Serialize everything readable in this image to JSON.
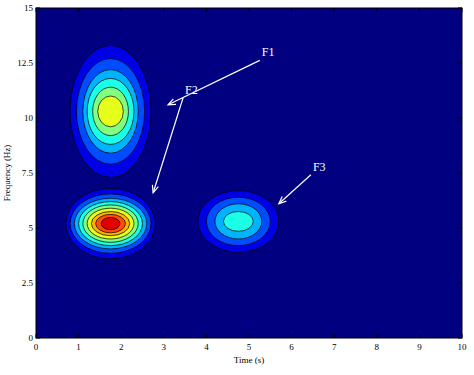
{
  "chart_data": {
    "type": "contour",
    "x_label": "Time (s)",
    "y_label": "Frequency (Hz)",
    "xlim": [
      0,
      10
    ],
    "ylim": [
      0,
      15
    ],
    "xticks": [
      0,
      1,
      2,
      3,
      4,
      5,
      6,
      7,
      8,
      9,
      10
    ],
    "yticks": [
      0,
      2.5,
      5,
      7.5,
      10,
      12.5,
      15
    ],
    "clim": [
      0,
      10
    ],
    "grid": false,
    "components": [
      {
        "name": "F1",
        "time": 1.75,
        "frequency": 10.3,
        "text_time": 5.3,
        "text_frequency": 12.8,
        "arrow_time": 3.1,
        "arrow_frequency": 10.6,
        "levels": [
          {
            "level": 1,
            "time_halfwidth": 0.95,
            "freq_halfwidth": 3.0
          },
          {
            "level": 2,
            "time_halfwidth": 0.8,
            "freq_halfwidth": 2.4
          },
          {
            "level": 3,
            "time_halfwidth": 0.65,
            "freq_halfwidth": 1.9
          },
          {
            "level": 4,
            "time_halfwidth": 0.55,
            "freq_halfwidth": 1.5
          },
          {
            "level": 5,
            "time_halfwidth": 0.42,
            "freq_halfwidth": 1.1
          },
          {
            "level": 6,
            "time_halfwidth": 0.3,
            "freq_halfwidth": 0.7
          }
        ]
      },
      {
        "name": "F2",
        "time": 1.75,
        "frequency": 5.2,
        "text_time": 3.5,
        "text_frequency": 11.1,
        "arrow_time": 2.75,
        "arrow_frequency": 6.6,
        "levels": [
          {
            "level": 1,
            "time_halfwidth": 1.05,
            "freq_halfwidth": 1.6
          },
          {
            "level": 2,
            "time_halfwidth": 0.95,
            "freq_halfwidth": 1.35
          },
          {
            "level": 3,
            "time_halfwidth": 0.85,
            "freq_halfwidth": 1.15
          },
          {
            "level": 4,
            "time_halfwidth": 0.75,
            "freq_halfwidth": 1.0
          },
          {
            "level": 5,
            "time_halfwidth": 0.65,
            "freq_halfwidth": 0.85
          },
          {
            "level": 6,
            "time_halfwidth": 0.55,
            "freq_halfwidth": 0.7
          },
          {
            "level": 7,
            "time_halfwidth": 0.45,
            "freq_halfwidth": 0.55
          },
          {
            "level": 8,
            "time_halfwidth": 0.35,
            "freq_halfwidth": 0.42
          },
          {
            "level": 9,
            "time_halfwidth": 0.22,
            "freq_halfwidth": 0.28
          }
        ]
      },
      {
        "name": "F3",
        "time": 4.75,
        "frequency": 5.3,
        "text_time": 6.5,
        "text_frequency": 7.6,
        "arrow_time": 5.7,
        "arrow_frequency": 6.1,
        "levels": [
          {
            "level": 1,
            "time_halfwidth": 0.95,
            "freq_halfwidth": 1.4
          },
          {
            "level": 2,
            "time_halfwidth": 0.75,
            "freq_halfwidth": 1.1
          },
          {
            "level": 3,
            "time_halfwidth": 0.55,
            "freq_halfwidth": 0.8
          },
          {
            "level": 4,
            "time_halfwidth": 0.35,
            "freq_halfwidth": 0.45
          }
        ]
      }
    ]
  }
}
